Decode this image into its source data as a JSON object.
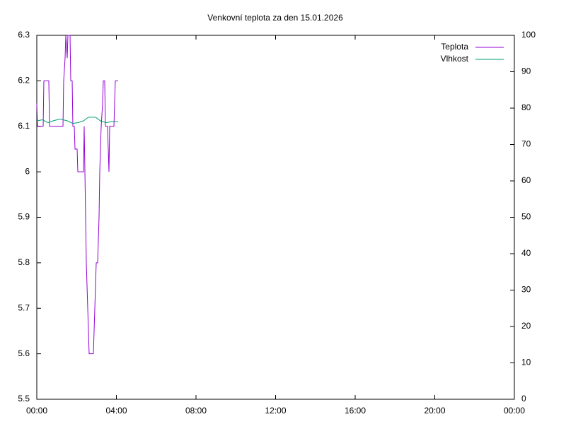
{
  "chart_data": {
    "type": "line",
    "title": "Venkovní teplota za den 15.01.2026",
    "xlim": [
      0,
      24
    ],
    "xticks": [
      {
        "value": 0,
        "label": "00:00"
      },
      {
        "value": 4,
        "label": "04:00"
      },
      {
        "value": 8,
        "label": "08:00"
      },
      {
        "value": 12,
        "label": "12:00"
      },
      {
        "value": 16,
        "label": "16:00"
      },
      {
        "value": 20,
        "label": "20:00"
      },
      {
        "value": 24,
        "label": "00:00"
      }
    ],
    "ylim": [
      5.5,
      6.3
    ],
    "yticks": [
      5.5,
      5.6,
      5.7,
      5.8,
      5.9,
      6,
      6.1,
      6.2,
      6.3
    ],
    "y2lim": [
      0,
      100
    ],
    "y2ticks": [
      0,
      10,
      20,
      30,
      40,
      50,
      60,
      70,
      80,
      90,
      100
    ],
    "grid": false,
    "legend": "top-right",
    "series": [
      {
        "name": "Teplota",
        "color": "#9400d3",
        "x": [
          0,
          0.036,
          0.32,
          0.356,
          0.604,
          0.64,
          1.316,
          1.351,
          1.422,
          1.458,
          1.529,
          1.564,
          1.671,
          1.707,
          1.778,
          1.813,
          1.884,
          1.92,
          2.027,
          2.062,
          2.347,
          2.382,
          2.418,
          2.453,
          2.489,
          2.524,
          2.56,
          2.596,
          2.631,
          2.844,
          2.88,
          2.916,
          2.987,
          3.058,
          3.093,
          3.129,
          3.164,
          3.2,
          3.236,
          3.307,
          3.342,
          3.413,
          3.449,
          3.556,
          3.591,
          3.627,
          3.662,
          3.876,
          3.911,
          3.947,
          4.089
        ],
        "values": [
          6.15,
          6.1,
          6.1,
          6.2,
          6.2,
          6.1,
          6.1,
          6.2,
          6.25,
          6.3,
          6.25,
          6.3,
          6.3,
          6.2,
          6.2,
          6.1,
          6.1,
          6.05,
          6.05,
          6.0,
          6.0,
          6.1,
          6.0,
          5.9,
          5.8,
          5.75,
          5.7,
          5.65,
          5.6,
          5.6,
          5.65,
          5.7,
          5.8,
          5.8,
          5.85,
          5.9,
          6.0,
          6.05,
          6.1,
          6.15,
          6.2,
          6.2,
          6.1,
          6.1,
          6.05,
          6.0,
          6.1,
          6.1,
          6.15,
          6.2,
          6.2
        ]
      },
      {
        "name": "Vlhkost",
        "color": "#009e73",
        "axis": "y2",
        "x": [
          0,
          0.284,
          0.569,
          0.818,
          1.173,
          1.529,
          1.813,
          2.062,
          2.347,
          2.596,
          2.951,
          3.2,
          3.484,
          3.769,
          4.089
        ],
        "values": [
          76.5,
          76.8,
          76,
          76.5,
          77,
          76.5,
          75.8,
          76,
          76.5,
          77.5,
          77.5,
          76.5,
          76,
          76.3,
          76.3
        ]
      }
    ]
  }
}
